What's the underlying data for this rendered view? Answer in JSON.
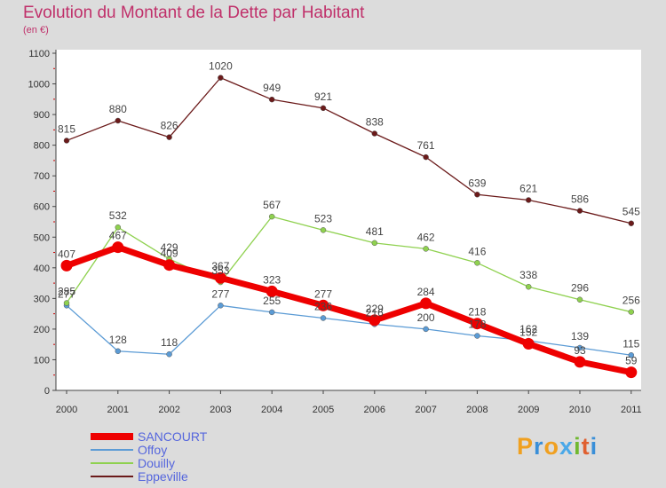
{
  "title": "Evolution du Montant de la Dette par Habitant",
  "subtitle": "(en €)",
  "logo_text": "Proxiti",
  "chart_data": {
    "type": "line",
    "title": "Evolution du Montant de la Dette par Habitant",
    "subtitle": "(en €)",
    "x": [
      "2000",
      "2001",
      "2002",
      "2003",
      "2004",
      "2005",
      "2006",
      "2007",
      "2008",
      "2009",
      "2010",
      "2011"
    ],
    "ylim": [
      0,
      1100
    ],
    "yticks": [
      0,
      100,
      200,
      300,
      400,
      500,
      600,
      700,
      800,
      900,
      1000,
      1100
    ],
    "grid": false,
    "legend_position": "bottom-left",
    "series": [
      {
        "name": "SANCOURT",
        "color": "#ee0000",
        "emphasis": true,
        "values": [
          407,
          467,
          409,
          367,
          323,
          277,
          229,
          284,
          218,
          152,
          93,
          59
        ]
      },
      {
        "name": "Offoy",
        "color": "#5b9bd5",
        "emphasis": false,
        "values": [
          277,
          128,
          118,
          277,
          255,
          236,
          216,
          200,
          178,
          162,
          139,
          115
        ]
      },
      {
        "name": "Douilly",
        "color": "#8fd14f",
        "emphasis": false,
        "values": [
          285,
          532,
          429,
          353,
          567,
          523,
          481,
          462,
          416,
          338,
          296,
          256
        ]
      },
      {
        "name": "Eppeville",
        "color": "#6b1a1a",
        "emphasis": false,
        "values": [
          815,
          880,
          826,
          1020,
          949,
          921,
          838,
          761,
          639,
          621,
          586,
          545
        ]
      }
    ]
  }
}
